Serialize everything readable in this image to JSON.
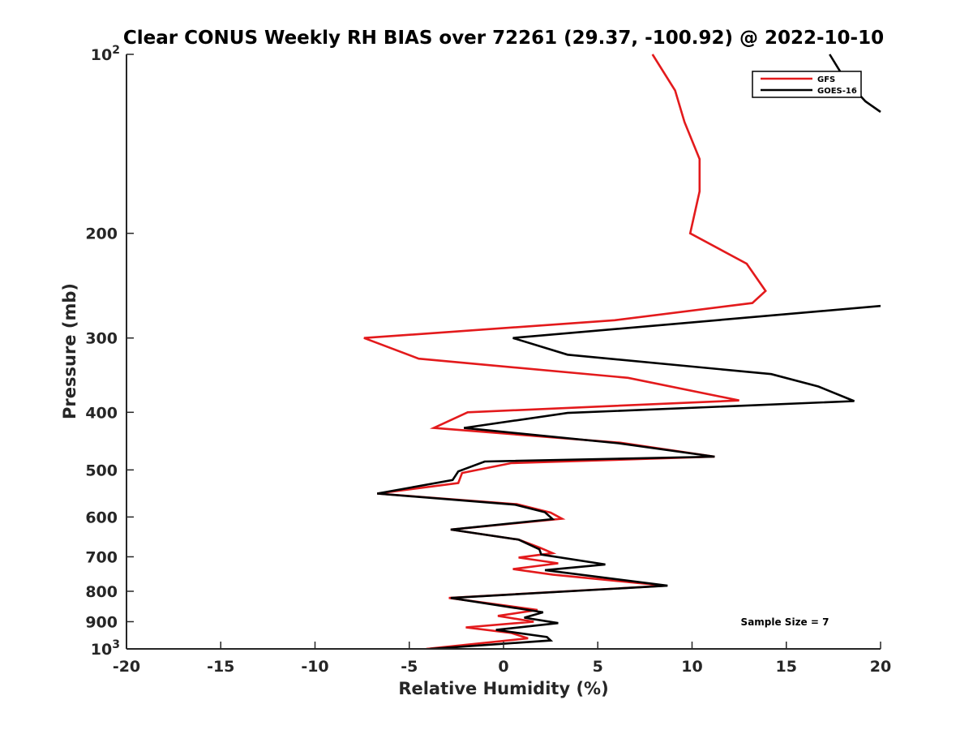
{
  "chart_data": {
    "type": "line",
    "title": "Clear CONUS Weekly RH BIAS over 72261 (29.37, -100.92) @ 2022-10-10",
    "xlabel": "Relative Humidity (%)",
    "ylabel": "Pressure (mb)",
    "xlim": [
      -20,
      20
    ],
    "ylim": [
      100,
      1000
    ],
    "yscale": "log",
    "y_reversed": true,
    "grid": false,
    "legend_position": "top-right",
    "xticks": [
      -20,
      -15,
      -10,
      -5,
      0,
      5,
      10,
      15,
      20
    ],
    "xtick_labels": [
      "-20",
      "-15",
      "-10",
      "-5",
      "0",
      "5",
      "10",
      "15",
      "20"
    ],
    "yticks": [
      100,
      200,
      300,
      400,
      500,
      600,
      700,
      800,
      900,
      1000
    ],
    "ytick_labels": [
      {
        "base": "10",
        "exp": "2"
      },
      {
        "base": "200",
        "exp": ""
      },
      {
        "base": "300",
        "exp": ""
      },
      {
        "base": "400",
        "exp": ""
      },
      {
        "base": "500",
        "exp": ""
      },
      {
        "base": "600",
        "exp": ""
      },
      {
        "base": "700",
        "exp": ""
      },
      {
        "base": "800",
        "exp": ""
      },
      {
        "base": "900",
        "exp": ""
      },
      {
        "base": "10",
        "exp": "3"
      }
    ],
    "annotation": "Sample Size = 7",
    "series": [
      {
        "name": "GFS",
        "color": "#e31a1c",
        "points": [
          [
            7.9,
            100
          ],
          [
            9.1,
            115
          ],
          [
            9.6,
            130
          ],
          [
            10.4,
            150
          ],
          [
            10.4,
            170
          ],
          [
            9.9,
            200
          ],
          [
            12.9,
            225
          ],
          [
            13.9,
            250
          ],
          [
            13.2,
            262
          ],
          [
            5.9,
            280
          ],
          [
            -7.4,
            300
          ],
          [
            -4.5,
            325
          ],
          [
            6.6,
            350
          ],
          [
            12.5,
            382
          ],
          [
            -1.9,
            400
          ],
          [
            -3.7,
            425
          ],
          [
            6.2,
            450
          ],
          [
            11.2,
            475
          ],
          [
            0.4,
            487
          ],
          [
            -2.2,
            506
          ],
          [
            -2.4,
            526
          ],
          [
            -6.7,
            548
          ],
          [
            0.7,
            571
          ],
          [
            2.5,
            590
          ],
          [
            3.1,
            604
          ],
          [
            -2.8,
            630
          ],
          [
            0.8,
            655
          ],
          [
            1.9,
            675
          ],
          [
            2.6,
            690
          ],
          [
            0.8,
            702
          ],
          [
            2.9,
            718
          ],
          [
            0.5,
            734
          ],
          [
            2.6,
            750
          ],
          [
            8.6,
            783
          ],
          [
            -2.9,
            821
          ],
          [
            1.8,
            860
          ],
          [
            -0.3,
            880
          ],
          [
            1.6,
            900
          ],
          [
            -2.0,
            920
          ],
          [
            0.4,
            940
          ],
          [
            1.3,
            960
          ],
          [
            -4.1,
            1000
          ]
        ]
      },
      {
        "name": "GOES-16",
        "color": "#000000",
        "points": [
          [
            20,
            265
          ],
          [
            0.5,
            300
          ],
          [
            3.4,
            320
          ],
          [
            14.2,
            345
          ],
          [
            16.7,
            362
          ],
          [
            18.6,
            383
          ],
          [
            3.4,
            401
          ],
          [
            -2.1,
            425
          ],
          [
            6.1,
            451
          ],
          [
            11.2,
            475
          ],
          [
            -1.0,
            484
          ],
          [
            -2.4,
            503
          ],
          [
            -2.7,
            520
          ],
          [
            -6.7,
            548
          ],
          [
            0.6,
            572
          ],
          [
            2.2,
            589
          ],
          [
            2.6,
            605
          ],
          [
            -2.8,
            630
          ],
          [
            0.8,
            655
          ],
          [
            1.9,
            680
          ],
          [
            2.0,
            694
          ],
          [
            5.4,
            721
          ],
          [
            2.2,
            737
          ],
          [
            8.7,
            783
          ],
          [
            -2.8,
            821
          ],
          [
            2.1,
            868
          ],
          [
            1.1,
            886
          ],
          [
            2.9,
            905
          ],
          [
            -0.4,
            929
          ],
          [
            2.3,
            955
          ],
          [
            2.5,
            968
          ],
          [
            -3.9,
            1000
          ]
        ],
        "top_segment": [
          [
            17.3,
            100
          ],
          [
            18.1,
            110
          ],
          [
            19.2,
            120
          ],
          [
            20,
            125
          ]
        ]
      }
    ]
  }
}
